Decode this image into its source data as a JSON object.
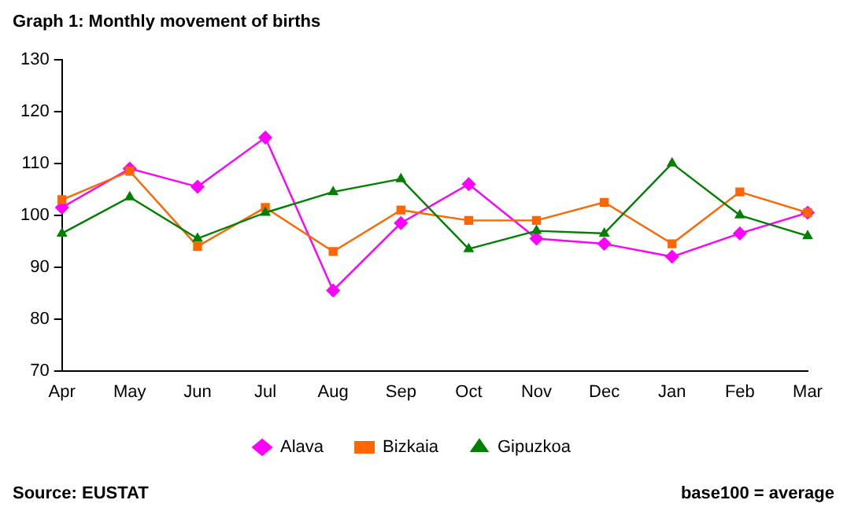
{
  "chart_data": {
    "type": "line",
    "title": "Graph 1: Monthly movement of births",
    "categories": [
      "Apr",
      "May",
      "Jun",
      "Jul",
      "Aug",
      "Sep",
      "Oct",
      "Nov",
      "Dec",
      "Jan",
      "Feb",
      "Mar"
    ],
    "series": [
      {
        "name": "Alava",
        "color": "#ff00ff",
        "marker": "diamond",
        "values": [
          101.5,
          109,
          105.5,
          115,
          85.5,
          98.5,
          106,
          95.5,
          94.5,
          92,
          96.5,
          100.5
        ]
      },
      {
        "name": "Bizkaia",
        "color": "#ff6600",
        "marker": "square",
        "values": [
          103,
          108.5,
          94,
          101.5,
          93,
          101,
          99,
          99,
          102.5,
          94.5,
          104.5,
          100.5
        ]
      },
      {
        "name": "Gipuzkoa",
        "color": "#008000",
        "marker": "triangle",
        "values": [
          96.5,
          103.5,
          95.5,
          100.5,
          104.5,
          107,
          93.5,
          97,
          96.5,
          110,
          100,
          96
        ]
      }
    ],
    "ylim": [
      70,
      130
    ],
    "yticks": [
      70,
      80,
      90,
      100,
      110,
      120,
      130
    ],
    "grid": false,
    "legend": "bottom",
    "line_style": "solid",
    "annotations": [
      "Source: EUSTAT",
      "base100 = average"
    ]
  }
}
